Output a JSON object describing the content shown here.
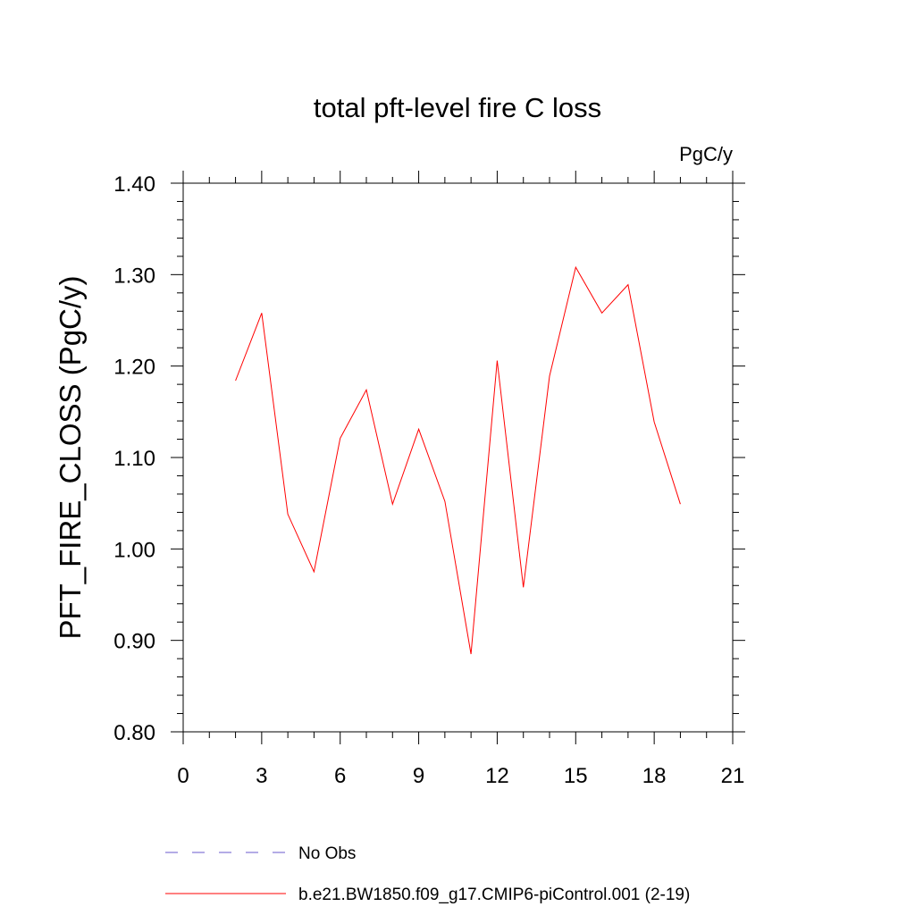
{
  "chart_data": {
    "type": "line",
    "title": "total pft-level fire C loss",
    "units_label": "PgC/y",
    "ylabel": "PFT_FIRE_CLOSS  (PgC/y)",
    "xlabel": "",
    "xlim": [
      0,
      21
    ],
    "ylim": [
      0.8,
      1.4
    ],
    "x_ticks": [
      0,
      3,
      6,
      9,
      12,
      15,
      18,
      21
    ],
    "x_tick_labels": [
      "0",
      "3",
      "6",
      "9",
      "12",
      "15",
      "18",
      "21"
    ],
    "y_ticks": [
      0.8,
      0.9,
      1.0,
      1.1,
      1.2,
      1.3,
      1.4
    ],
    "y_tick_labels": [
      "0.80",
      "0.90",
      "1.00",
      "1.10",
      "1.20",
      "1.30",
      "1.40"
    ],
    "grid": false,
    "legend_position": "bottom",
    "series": [
      {
        "name": "b.e21.BW1850.f09_g17.CMIP6-piControl.001 (2-19)",
        "color": "#ff0000",
        "style": "solid",
        "x": [
          2,
          3,
          4,
          5,
          6,
          7,
          8,
          9,
          10,
          11,
          12,
          13,
          14,
          15,
          16,
          17,
          18,
          19
        ],
        "y": [
          1.184,
          1.258,
          1.038,
          0.975,
          1.121,
          1.174,
          1.049,
          1.131,
          1.052,
          0.885,
          1.206,
          0.958,
          1.189,
          1.308,
          1.258,
          1.289,
          1.139,
          1.049
        ]
      }
    ],
    "legend": [
      {
        "label": "No Obs",
        "color": "#6a5acd",
        "style": "dashed"
      },
      {
        "label": "b.e21.BW1850.f09_g17.CMIP6-piControl.001 (2-19)",
        "color": "#ff0000",
        "style": "solid"
      }
    ]
  }
}
